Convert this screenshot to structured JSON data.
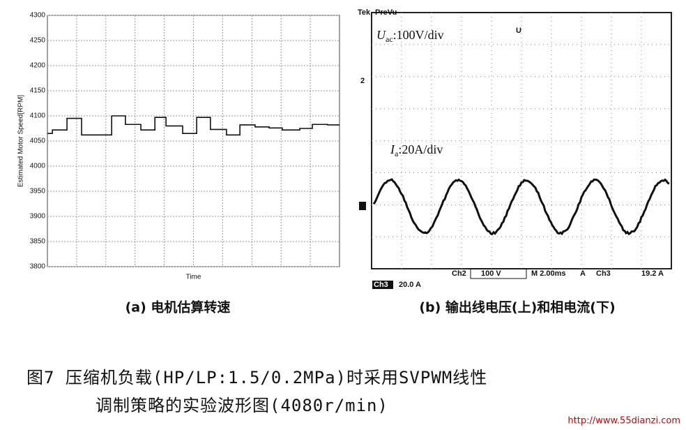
{
  "chart_data": {
    "type": "line",
    "step": "post",
    "ylabel": "Estimated Motor Speed[RPM]",
    "xlabel": "Time",
    "caption": "(a) 电机估算转速",
    "x": [
      0,
      1.7,
      6.7,
      11.7,
      22,
      26.7,
      32,
      36.8,
      40.6,
      46.3,
      51.1,
      55.8,
      61.3,
      65.9,
      71.1,
      75.9,
      80.4,
      86.4,
      90.7,
      95.9,
      100
    ],
    "series": [
      {
        "color": "#111111",
        "values": [
          4065,
          4072,
          4095,
          4062,
          4100,
          4083,
          4072,
          4097,
          4080,
          4065,
          4097,
          4073,
          4062,
          4082,
          4078,
          4076,
          4072,
          4075,
          4083,
          4082,
          4082
        ]
      }
    ],
    "xlim": [
      0,
      100
    ],
    "ylim": [
      3800,
      4300
    ],
    "yticks": [
      3800,
      3850,
      3900,
      3950,
      4000,
      4050,
      4100,
      4150,
      4200,
      4250,
      4300
    ],
    "grid": true
  },
  "scope": {
    "brand": "Tek",
    "mode": "PreVu",
    "marker_top": "U",
    "ch_marker": "2",
    "uac": {
      "symbol": "U",
      "subscript": "ac",
      "text": ":100V/div"
    },
    "ia": {
      "symbol": "I",
      "subscript": "a",
      "text": ":20A/div"
    },
    "status": [
      "Ch2",
      "100 V",
      "M 2.00ms",
      "A",
      "Ch3",
      "19.2 A"
    ],
    "ch3_badge": "Ch3",
    "ch3_scale": "20.0 A",
    "caption": "(b) 输出线电压(上)和相电流(下)"
  },
  "figure": {
    "line1": "图7  压缩机负载(HP/LP:1.5/0.2MPa)时采用SVPWM线性",
    "line2": "调制策略的实验波形图(4080r/min)",
    "watermark": "http://www.55dianzi.com"
  }
}
